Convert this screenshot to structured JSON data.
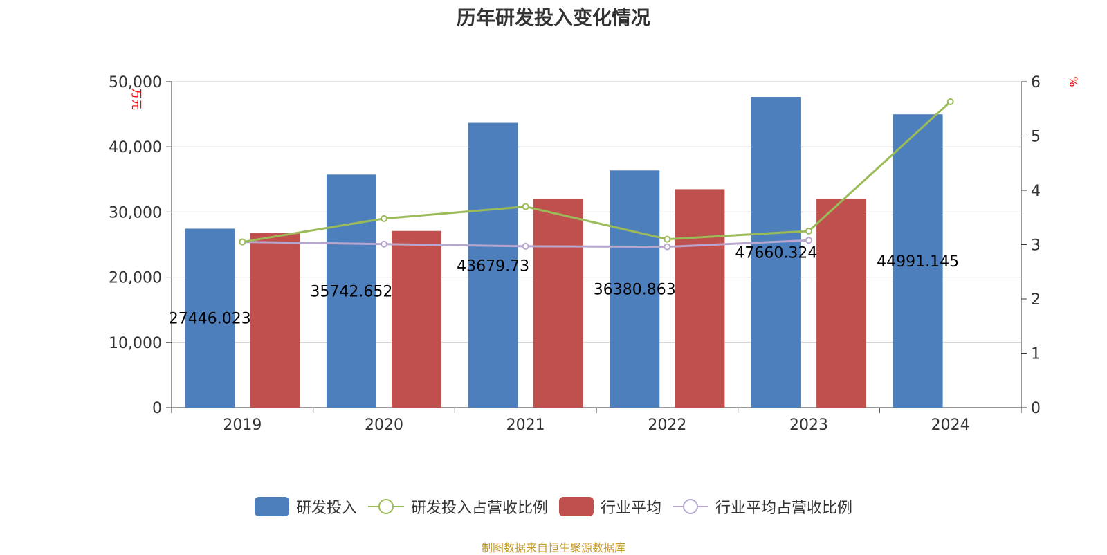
{
  "title": "历年研发投入变化情况",
  "source": "制图数据来自恒生聚源数据库",
  "colors": {
    "rd_bar": "#4e7fbd",
    "industry_bar": "#c0504d",
    "rd_ratio_line": "#9bbb59",
    "industry_ratio_line": "#b7a7cf",
    "axis_unit": "#ff0000"
  },
  "chart_data": {
    "type": "bar",
    "categories": [
      "2019",
      "2020",
      "2021",
      "2022",
      "2023",
      "2024"
    ],
    "y_left": {
      "label": "万元",
      "ylim": [
        0,
        50000
      ],
      "ticks": [
        "0",
        "10,000",
        "20,000",
        "30,000",
        "40,000",
        "50,000"
      ]
    },
    "y_right": {
      "label": "%",
      "ylim": [
        0,
        6
      ],
      "ticks": [
        "0",
        "1",
        "2",
        "3",
        "4",
        "5",
        "6"
      ]
    },
    "grid": true,
    "legend": "bottom",
    "series": [
      {
        "name": "研发投入",
        "type": "bar",
        "axis": "left",
        "values": [
          27446.023,
          35742.652,
          43679.73,
          36380.863,
          47660.324,
          44991.145
        ],
        "labels": [
          "27446.023",
          "35742.652",
          "43679.73",
          "36380.863",
          "47660.324",
          "44991.145"
        ]
      },
      {
        "name": "研发投入占营收比例",
        "type": "line",
        "axis": "right",
        "values": [
          3.05,
          3.48,
          3.7,
          3.1,
          3.25,
          5.63
        ]
      },
      {
        "name": "行业平均",
        "type": "bar",
        "axis": "left",
        "values": [
          26800,
          27100,
          32000,
          33500,
          32000,
          null
        ]
      },
      {
        "name": "行业平均占营收比例",
        "type": "line",
        "axis": "right",
        "values": [
          3.05,
          3.01,
          2.97,
          2.96,
          3.08,
          null
        ]
      }
    ]
  }
}
